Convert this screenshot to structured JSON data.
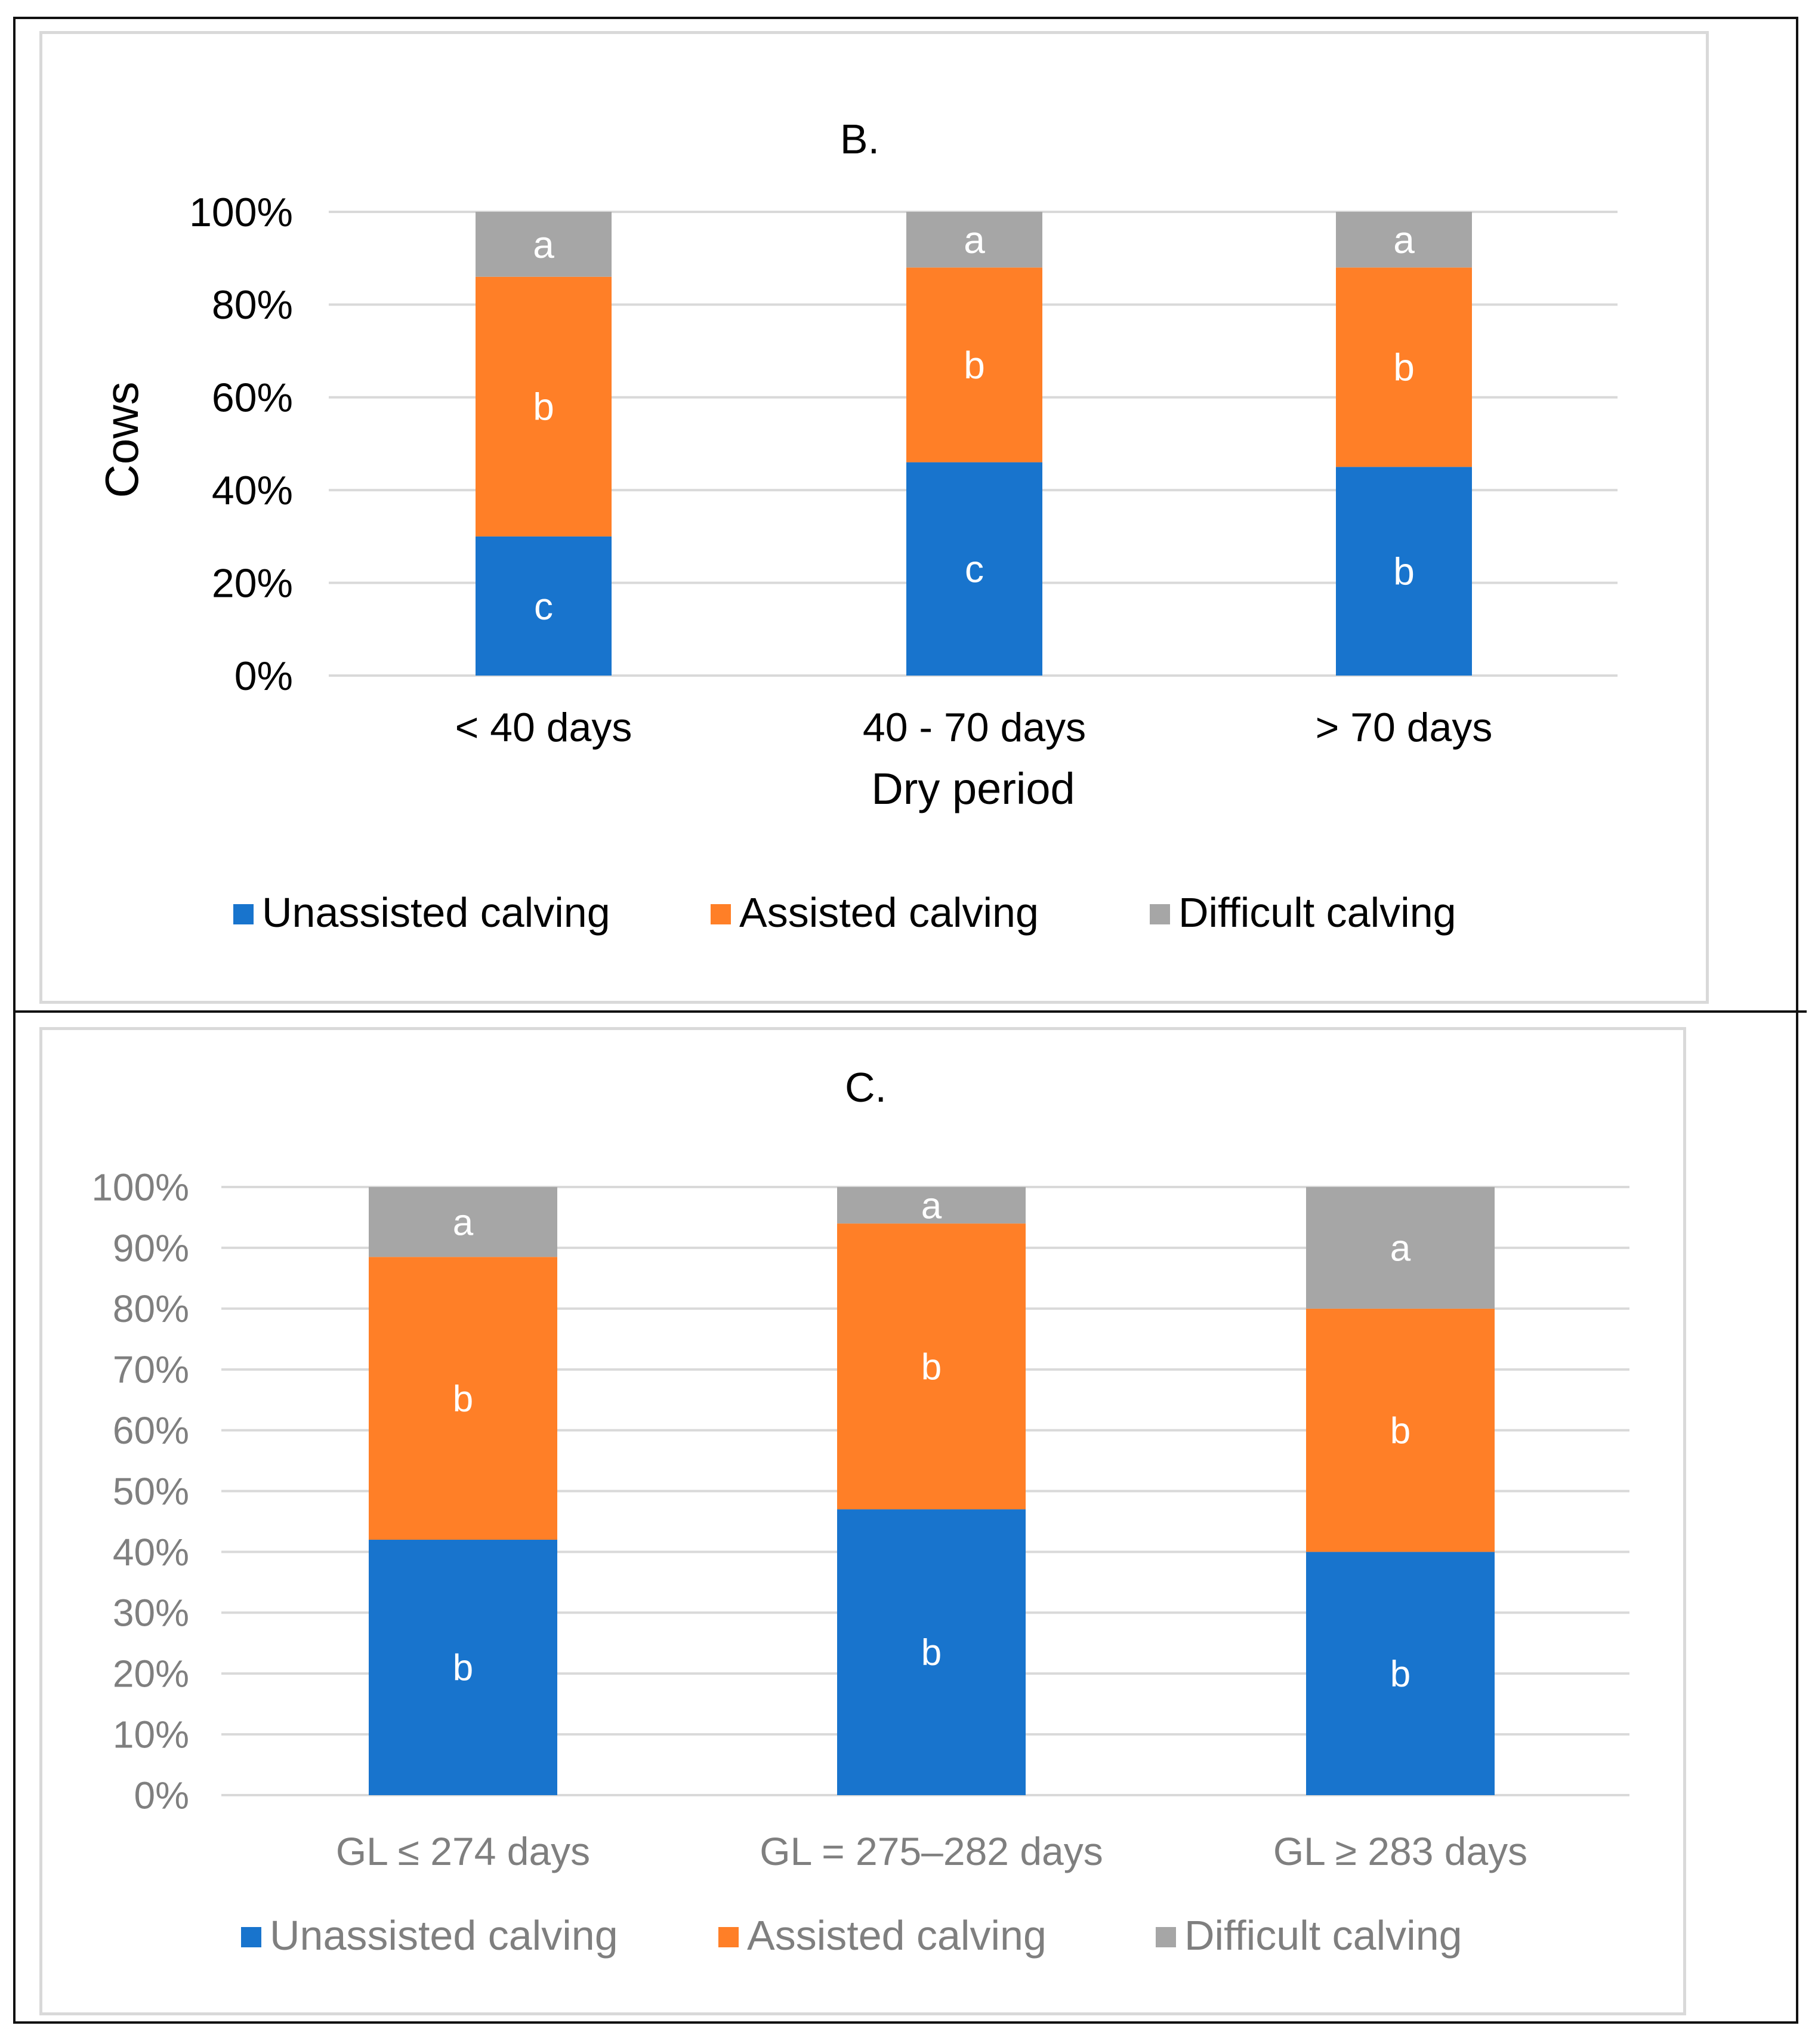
{
  "colors": {
    "unassisted": "#1874cd",
    "assisted": "#ff7f27",
    "difficult": "#a6a6a6",
    "grid": "#d9d9d9",
    "dark_text": "#000000",
    "gray_text": "#7f7f7f",
    "bar_label": "#ffffff"
  },
  "chart_data": [
    {
      "type": "bar",
      "stacked": true,
      "title": "B.",
      "xlabel": "Dry period",
      "ylabel": "Cows",
      "ylim": [
        0,
        100
      ],
      "yticks": [
        "0%",
        "20%",
        "40%",
        "60%",
        "80%",
        "100%"
      ],
      "categories": [
        "< 40 days",
        "40 - 70 days",
        "> 70 days"
      ],
      "series": [
        {
          "name": "Unassisted calving",
          "values": [
            30,
            46,
            45
          ],
          "letters": [
            "c",
            "c",
            "b"
          ]
        },
        {
          "name": "Assisted calving",
          "values": [
            56,
            42,
            43
          ],
          "letters": [
            "b",
            "b",
            "b"
          ]
        },
        {
          "name": "Difficult calving",
          "values": [
            14,
            12,
            12
          ],
          "letters": [
            "a",
            "a",
            "a"
          ]
        }
      ],
      "legend": "bottom"
    },
    {
      "type": "bar",
      "stacked": true,
      "title": "C.",
      "xlabel": "",
      "ylabel": "",
      "ylim": [
        0,
        100
      ],
      "yticks": [
        "0%",
        "10%",
        "20%",
        "30%",
        "40%",
        "50%",
        "60%",
        "70%",
        "80%",
        "90%",
        "100%"
      ],
      "categories": [
        "GL ≤ 274 days",
        "GL = 275–282 days",
        "GL ≥ 283 days"
      ],
      "series": [
        {
          "name": "Unassisted calving",
          "values": [
            42,
            47,
            40
          ],
          "letters": [
            "b",
            "b",
            "b"
          ]
        },
        {
          "name": "Assisted calving",
          "values": [
            46.5,
            47,
            40
          ],
          "letters": [
            "b",
            "b",
            "b"
          ]
        },
        {
          "name": "Difficult calving",
          "values": [
            11.5,
            6,
            20
          ],
          "letters": [
            "a",
            "a",
            "a"
          ]
        }
      ],
      "legend": "bottom"
    }
  ]
}
